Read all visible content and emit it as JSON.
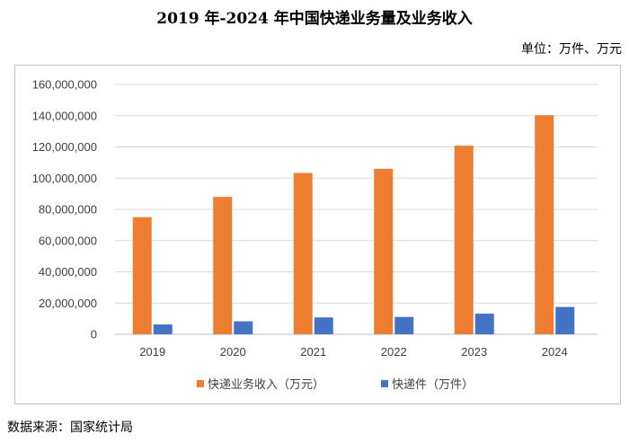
{
  "header": {
    "title": "2019 年-2024 年中国快递业务量及业务收入",
    "unit": "单位：万件、万元"
  },
  "footer": {
    "source": "数据来源：国家统计局"
  },
  "chart_data": {
    "type": "bar",
    "categories": [
      "2019",
      "2020",
      "2021",
      "2022",
      "2023",
      "2024"
    ],
    "series": [
      {
        "name": "快递业务收入（万元）",
        "color": "#ed7d31",
        "values": [
          75000000,
          88000000,
          103300000,
          106000000,
          120800000,
          140300000
        ]
      },
      {
        "name": "快递件（万件）",
        "color": "#4472c4",
        "values": [
          6300000,
          8300000,
          10800000,
          11100000,
          13200000,
          17500000
        ]
      }
    ],
    "ylim": [
      0,
      160000000
    ],
    "yticks": [
      "0",
      "20,000,000",
      "40,000,000",
      "60,000,000",
      "80,000,000",
      "100,000,000",
      "120,000,000",
      "140,000,000",
      "160,000,000"
    ],
    "grid": true,
    "legend": "bottom"
  }
}
